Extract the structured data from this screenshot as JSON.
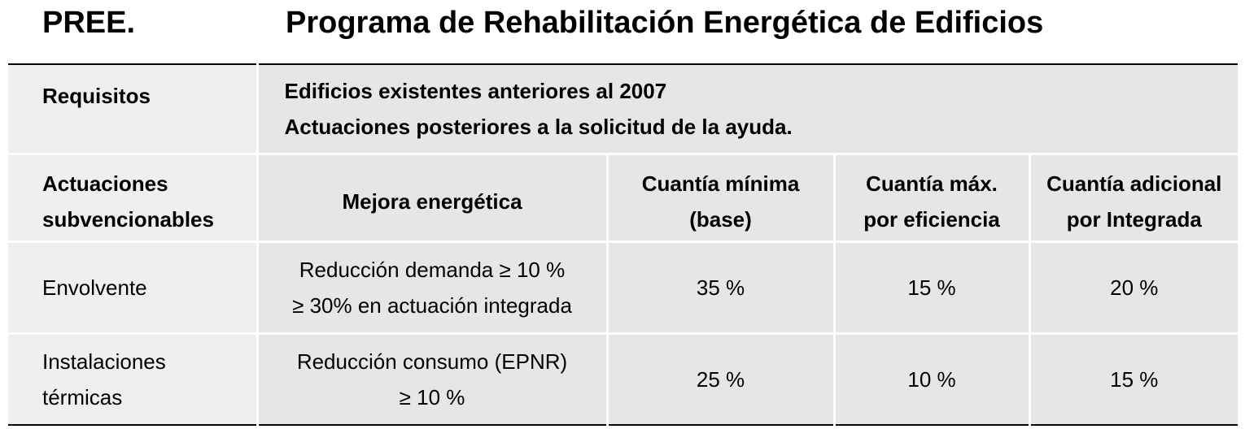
{
  "header": {
    "abbr": "PREE.",
    "title": "Programa de Rehabilitación Energética de Edificios"
  },
  "requirements": {
    "label": "Requisitos",
    "lines": [
      "Edificios existentes anteriores al 2007",
      "Actuaciones posteriores a la solicitud de la ayuda."
    ]
  },
  "columns": [
    {
      "lines": [
        "Actuaciones",
        "subvencionables"
      ]
    },
    {
      "lines": [
        "Mejora energética"
      ]
    },
    {
      "lines": [
        "Cuantía mínima",
        "(base)"
      ]
    },
    {
      "lines": [
        "Cuantía máx.",
        "por eficiencia"
      ]
    },
    {
      "lines": [
        "Cuantía adicional",
        "por Integrada"
      ]
    }
  ],
  "rows": [
    {
      "actuacion": [
        "Envolvente"
      ],
      "mejora": [
        "Reducción demanda ≥ 10 %",
        "≥ 30% en actuación integrada"
      ],
      "minima": "35 %",
      "maxima": "15 %",
      "adicional": "20 %"
    },
    {
      "actuacion": [
        "Instalaciones",
        "térmicas"
      ],
      "mejora": [
        "Reducción consumo (EPNR)",
        "≥ 10 %"
      ],
      "minima": "25 %",
      "maxima": "10 %",
      "adicional": "15 %"
    }
  ]
}
